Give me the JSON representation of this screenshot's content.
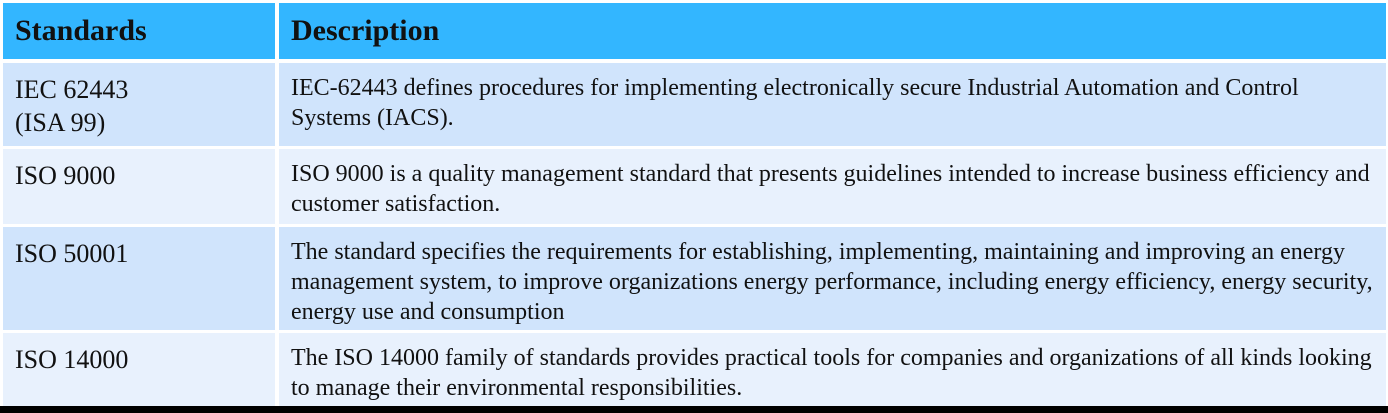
{
  "header": {
    "col1": "Standards",
    "col2": "Description"
  },
  "rows": [
    {
      "standard_line1": "IEC 62443",
      "standard_line2": "(ISA 99)",
      "description": "IEC-62443  defines procedures for implementing electronically  secure Industrial Automation and Control Systems (IACS)."
    },
    {
      "standard_line1": "ISO 9000",
      "standard_line2": "",
      "description": "ISO 9000  is a quality management standard that presents guidelines intended to increase business efficiency and customer satisfaction."
    },
    {
      "standard_line1": "ISO 50001",
      "standard_line2": "",
      "description": "The standard specifies the requirements for establishing, implementing, maintaining and improving an energy management system, to  improve organizations energy performance, including energy efficiency, energy security, energy use and consumption"
    },
    {
      "standard_line1": "ISO 14000",
      "standard_line2": "",
      "description": "The ISO 14000 family of standards provides practical tools for companies and organizations of all kinds looking to manage their environmental responsibilities."
    }
  ],
  "colors": {
    "header_bg": "#33b6ff",
    "row_dark": "#d0e4fc",
    "row_light": "#e8f1fd"
  }
}
